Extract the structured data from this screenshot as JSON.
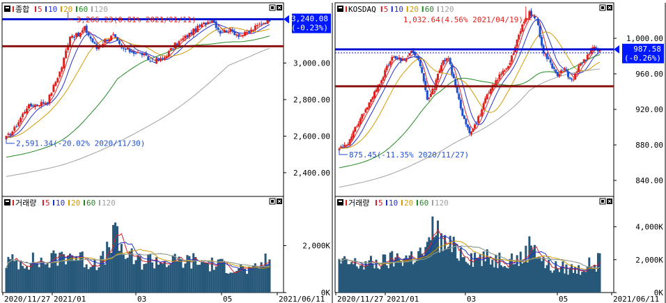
{
  "colors": {
    "up": "#e0201c",
    "down": "#1f4fd1",
    "ma5": "#d0202a",
    "ma10": "#2030d0",
    "ma20": "#d49a00",
    "ma60": "#228822",
    "ma120": "#a0a0a0",
    "volume_bar": "#27587a",
    "blue_level": "#0010d0",
    "red_level": "#8b1010",
    "label_bg": "#0018ff",
    "label_text": "#ffffff",
    "frame": "#000000"
  },
  "left_panel": {
    "price_legend": {
      "name": "종합",
      "ma": [
        "5",
        "10",
        "20",
        "60",
        "120"
      ]
    },
    "volume_legend": {
      "name": "거래량",
      "ma": [
        "5",
        "10",
        "20",
        "60",
        "120"
      ]
    },
    "current_price_label": "3,240.08",
    "current_change_label": "(-0.23%)",
    "max_annotation": "3,266.23(0.81% 2021/01/11)",
    "min_annotation": "2,591.34(-20.02% 2020/11/30)",
    "price_ticks": [
      "3,000.00",
      "2,800.00",
      "2,600.00",
      "2,400.00"
    ],
    "volume_ticks": [
      "2,000K",
      "0K"
    ],
    "date_ticks": [
      "2020/11/27",
      "2021/01",
      "03",
      "05",
      "2021/06/11"
    ]
  },
  "right_panel": {
    "price_legend": {
      "name": "KOSDAQ",
      "ma": [
        "5",
        "10",
        "20",
        "60",
        "120"
      ]
    },
    "volume_legend": {
      "name": "거래량",
      "ma": [
        "5",
        "10",
        "20",
        "60",
        "120"
      ]
    },
    "current_price_label": "987.58",
    "current_change_label": "(-0.26%)",
    "max_annotation": "1,032.64(4.56% 2021/04/19)",
    "min_annotation": "875.45(-11.35% 2020/11/27)",
    "price_ticks": [
      "1,000.00",
      "960.00",
      "920.00",
      "880.00",
      "840.00"
    ],
    "volume_ticks": [
      "4,000K",
      "2,000K",
      "0K"
    ],
    "date_ticks": [
      "2020/11/27",
      "2021/01",
      "03",
      "05",
      "2021/06/11"
    ]
  },
  "chart_data": [
    {
      "type": "candlestick",
      "title": "종합",
      "x_start": "2020/11/27",
      "x_end": "2021/06/11",
      "ylim": [
        2270,
        3330
      ],
      "moving_averages": [
        "5",
        "10",
        "20",
        "60",
        "120"
      ],
      "max": {
        "value": 3266.23,
        "change_pct": 0.81,
        "date": "2021/01/11"
      },
      "min": {
        "value": 2591.34,
        "change_pct": -20.02,
        "date": "2020/11/30"
      },
      "last": {
        "value": 3240.08,
        "change_pct": -0.23
      },
      "blue_level": 3240.08,
      "red_level": 3092,
      "close_anchors": [
        [
          0,
          2591
        ],
        [
          4,
          2640
        ],
        [
          10,
          2760
        ],
        [
          20,
          2790
        ],
        [
          27,
          2980
        ],
        [
          31,
          3152
        ],
        [
          35,
          3150
        ],
        [
          38,
          3190
        ],
        [
          44,
          3080
        ],
        [
          48,
          3125
        ],
        [
          52,
          3150
        ],
        [
          56,
          3080
        ],
        [
          62,
          3060
        ],
        [
          66,
          3050
        ],
        [
          70,
          3010
        ],
        [
          76,
          3020
        ],
        [
          82,
          3100
        ],
        [
          88,
          3150
        ],
        [
          94,
          3200
        ],
        [
          100,
          3240
        ],
        [
          104,
          3170
        ],
        [
          108,
          3180
        ],
        [
          114,
          3150
        ],
        [
          118,
          3170
        ],
        [
          124,
          3220
        ],
        [
          128,
          3240
        ]
      ],
      "volume": {
        "ylim": [
          0,
          3500
        ],
        "unit": "K",
        "anchors": [
          [
            0,
            1300
          ],
          [
            10,
            1350
          ],
          [
            20,
            1300
          ],
          [
            30,
            1700
          ],
          [
            40,
            1300
          ],
          [
            48,
            1400
          ],
          [
            52,
            2600
          ],
          [
            56,
            1800
          ],
          [
            60,
            1500
          ],
          [
            64,
            1300
          ],
          [
            70,
            1400
          ],
          [
            80,
            1300
          ],
          [
            90,
            1350
          ],
          [
            100,
            1200
          ],
          [
            110,
            1100
          ],
          [
            120,
            900
          ],
          [
            128,
            1500
          ]
        ]
      }
    },
    {
      "type": "candlestick",
      "title": "KOSDAQ",
      "x_start": "2020/11/27",
      "x_end": "2021/06/11",
      "ylim": [
        822,
        1040
      ],
      "moving_averages": [
        "5",
        "10",
        "20",
        "60",
        "120"
      ],
      "max": {
        "value": 1032.64,
        "change_pct": 4.56,
        "date": "2021/04/19"
      },
      "min": {
        "value": 875.45,
        "change_pct": -11.35,
        "date": "2020/11/27"
      },
      "last": {
        "value": 987.58,
        "change_pct": -0.26
      },
      "blue_level": 987.58,
      "red_level": 946,
      "close_anchors": [
        [
          0,
          876
        ],
        [
          6,
          885
        ],
        [
          12,
          910
        ],
        [
          18,
          930
        ],
        [
          24,
          955
        ],
        [
          30,
          978
        ],
        [
          36,
          975
        ],
        [
          42,
          985
        ],
        [
          46,
          970
        ],
        [
          50,
          930
        ],
        [
          54,
          945
        ],
        [
          58,
          972
        ],
        [
          62,
          978
        ],
        [
          66,
          945
        ],
        [
          70,
          915
        ],
        [
          74,
          895
        ],
        [
          78,
          905
        ],
        [
          84,
          935
        ],
        [
          90,
          955
        ],
        [
          96,
          970
        ],
        [
          100,
          990
        ],
        [
          104,
          1015
        ],
        [
          108,
          1028
        ],
        [
          112,
          1022
        ],
        [
          116,
          985
        ],
        [
          120,
          972
        ],
        [
          124,
          960
        ],
        [
          128,
          965
        ],
        [
          132,
          952
        ],
        [
          136,
          968
        ],
        [
          140,
          978
        ],
        [
          144,
          990
        ],
        [
          148,
          985
        ]
      ],
      "volume": {
        "ylim": [
          0,
          5000
        ],
        "unit": "K",
        "anchors": [
          [
            0,
            1800
          ],
          [
            12,
            1700
          ],
          [
            24,
            1800
          ],
          [
            34,
            2100
          ],
          [
            42,
            2200
          ],
          [
            50,
            2500
          ],
          [
            54,
            4200
          ],
          [
            58,
            3000
          ],
          [
            66,
            2600
          ],
          [
            76,
            2200
          ],
          [
            86,
            2000
          ],
          [
            96,
            2100
          ],
          [
            104,
            2000
          ],
          [
            110,
            3200
          ],
          [
            114,
            2200
          ],
          [
            118,
            1600
          ],
          [
            126,
            1500
          ],
          [
            136,
            1400
          ],
          [
            148,
            1900
          ]
        ]
      }
    }
  ]
}
